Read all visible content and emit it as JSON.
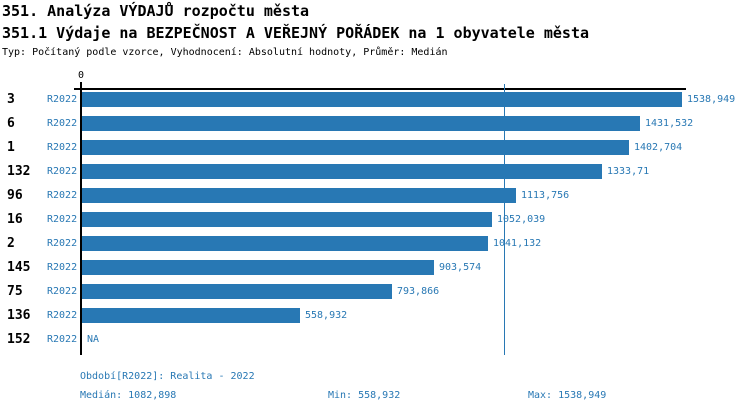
{
  "header": {
    "title": "351. Analýza VÝDAJŮ rozpočtu města",
    "subtitle": "351.1 Výdaje na BEZPEČNOST A VEŘEJNÝ POŘÁDEK na 1 obyvatele města",
    "meta": "Typ: Počítaný podle vzorce, Vyhodnocení: Absolutní hodnoty, Průměr: Medián"
  },
  "chart_data": {
    "type": "bar",
    "orientation": "horizontal",
    "bar_color": "#2878b4",
    "axis": {
      "zero_label": "0",
      "max_value": 1538.949
    },
    "median_value": 1082.898,
    "rows": [
      {
        "label": "3",
        "period": "R2022",
        "value": 1538.949,
        "value_label": "1538,949"
      },
      {
        "label": "6",
        "period": "R2022",
        "value": 1431.532,
        "value_label": "1431,532"
      },
      {
        "label": "1",
        "period": "R2022",
        "value": 1402.704,
        "value_label": "1402,704"
      },
      {
        "label": "132",
        "period": "R2022",
        "value": 1333.71,
        "value_label": "1333,71"
      },
      {
        "label": "96",
        "period": "R2022",
        "value": 1113.756,
        "value_label": "1113,756"
      },
      {
        "label": "16",
        "period": "R2022",
        "value": 1052.039,
        "value_label": "1052,039"
      },
      {
        "label": "2",
        "period": "R2022",
        "value": 1041.132,
        "value_label": "1041,132"
      },
      {
        "label": "145",
        "period": "R2022",
        "value": 903.574,
        "value_label": "903,574"
      },
      {
        "label": "75",
        "period": "R2022",
        "value": 793.866,
        "value_label": "793,866"
      },
      {
        "label": "136",
        "period": "R2022",
        "value": 558.932,
        "value_label": "558,932"
      },
      {
        "label": "152",
        "period": "R2022",
        "value": null,
        "value_label": "NA"
      }
    ]
  },
  "footer": {
    "period": "Období[R2022]: Realita - 2022",
    "median": "Medián: 1082,898",
    "min": "Min: 558,932",
    "max": "Max: 1538,949"
  }
}
